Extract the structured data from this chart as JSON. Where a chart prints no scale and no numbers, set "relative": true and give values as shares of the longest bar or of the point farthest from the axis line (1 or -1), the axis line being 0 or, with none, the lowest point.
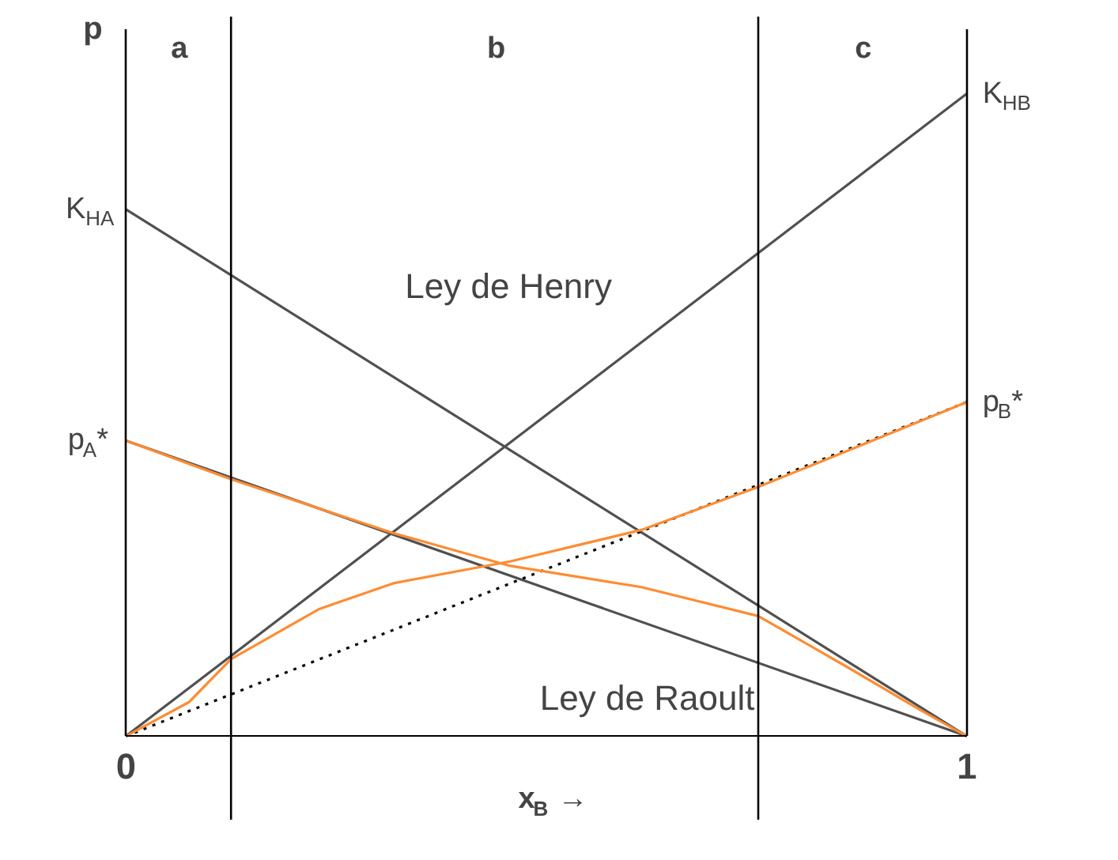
{
  "chart_data": {
    "type": "line",
    "relative": true,
    "xlim": [
      0,
      1
    ],
    "xticks": [
      0,
      1
    ],
    "xlabel": "x$_{B}$ →",
    "ylabel": "p",
    "tick_labels": "x",
    "grid": false,
    "marker": "none",
    "series": [
      {
        "color": "#505050",
        "x": [
          0,
          1
        ],
        "values": [
          0.82,
          0
        ]
      },
      {
        "color": "#505050",
        "x": [
          0,
          1
        ],
        "values": [
          0,
          1
        ]
      },
      {
        "color": "#505050",
        "x": [
          0,
          1
        ],
        "values": [
          0.46,
          0
        ]
      },
      {
        "color": "#000000",
        "line_style": "dotted",
        "x": [
          0,
          1
        ],
        "values": [
          0,
          0.52
        ]
      },
      {
        "color": "#ff8c33",
        "x": [
          0,
          0.125,
          0.318,
          0.457,
          0.613,
          0.752,
          0.856,
          0.943,
          1
        ],
        "values": [
          0.46,
          0.4,
          0.316,
          0.265,
          0.232,
          0.187,
          0.109,
          0.042,
          0
        ]
      },
      {
        "color": "#ff8c33",
        "x": [
          0,
          0.075,
          0.125,
          0.23,
          0.318,
          0.457,
          0.613,
          0.752,
          0.856,
          1
        ],
        "values": [
          0,
          0.053,
          0.12,
          0.198,
          0.238,
          0.272,
          0.321,
          0.388,
          0.443,
          0.52
        ]
      }
    ],
    "ref_lines": [
      {
        "axis": "x",
        "value": 0.125,
        "color": "#000000"
      },
      {
        "axis": "x",
        "value": 0.752,
        "color": "#000000"
      }
    ],
    "annotations": [
      "a",
      "b",
      "c",
      "K$_{HA}$",
      "p$_{A}$*",
      "K$_{HB}$",
      "p$_{B}$*",
      "Ley de Henry",
      "Ley de Raoult"
    ]
  }
}
